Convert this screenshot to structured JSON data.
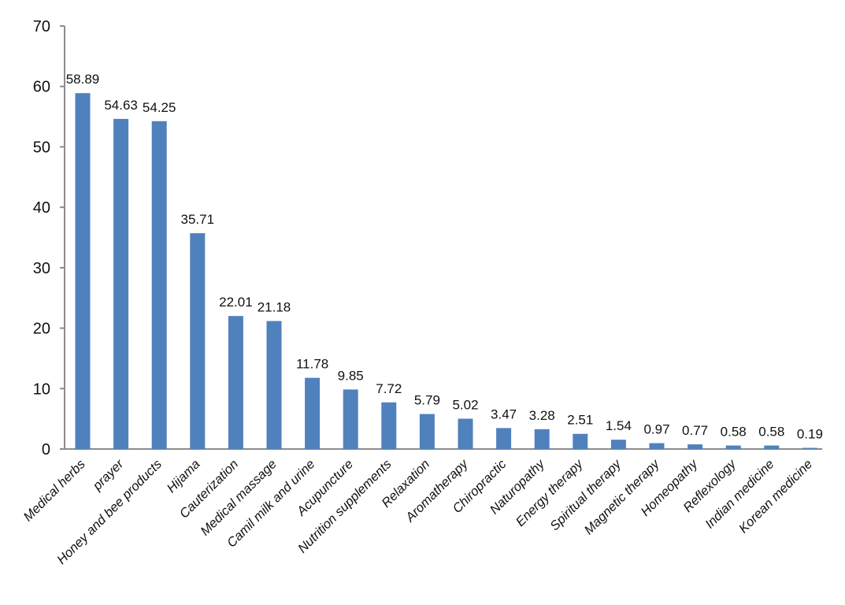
{
  "colors": {
    "bar": "#4f81bd",
    "axis": "#8c8c8c",
    "text": "#111111",
    "background": "#ffffff"
  },
  "chart_data": {
    "type": "bar",
    "title": "",
    "xlabel": "",
    "ylabel": "",
    "ylim": [
      0,
      70
    ],
    "yticks": [
      0,
      10,
      20,
      30,
      40,
      50,
      60,
      70
    ],
    "grid": false,
    "legend": "none",
    "categories": [
      "Medical herbs",
      "prayer",
      "Honey and bee products",
      "Hijama",
      "Cauterization",
      "Medical massage",
      "Camil milk and urine",
      "Acupuncture",
      "Nutrition supplements",
      "Relaxation",
      "Aromatherapy",
      "Chiropractic",
      "Naturopathy",
      "Energy therapy",
      "Spiritual therapy",
      "Magnetic therapy",
      "Homeopathy",
      "Reflexology",
      "Indian medicine",
      "Korean medicine"
    ],
    "values": [
      58.89,
      54.63,
      54.25,
      35.71,
      22.01,
      21.18,
      11.78,
      9.85,
      7.72,
      5.79,
      5.02,
      3.47,
      3.28,
      2.51,
      1.54,
      0.97,
      0.77,
      0.58,
      0.58,
      0.19
    ],
    "data_labels": [
      "58.89",
      "54.63",
      "54.25",
      "35.71",
      "22.01",
      "21.18",
      "11.78",
      "9.85",
      "7.72",
      "5.79",
      "5.02",
      "3.47",
      "3.28",
      "2.51",
      "1.54",
      "0.97",
      "0.77",
      "0.58",
      "0.58",
      "0.19"
    ]
  }
}
